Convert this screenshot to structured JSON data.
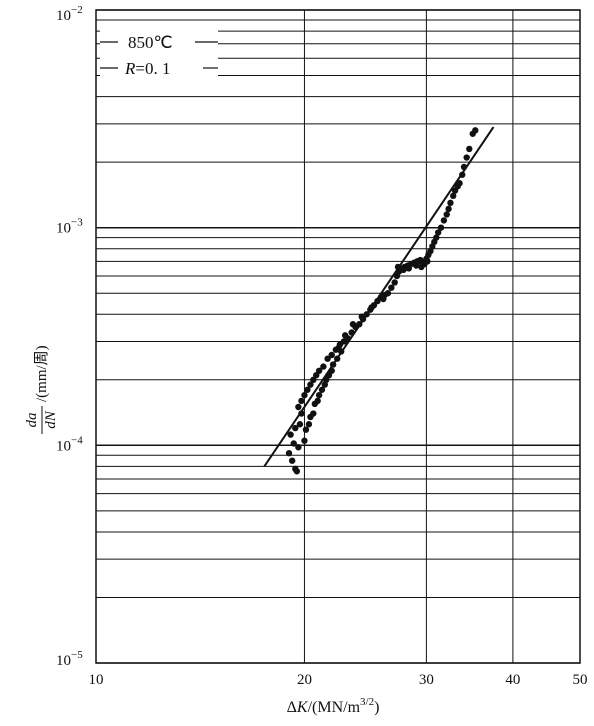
{
  "chart_data": {
    "type": "scatter",
    "title": "",
    "x_scale": "log",
    "y_scale": "log",
    "xlim": [
      10,
      50
    ],
    "ylim": [
      1e-05,
      0.01
    ],
    "x_ticks": [
      {
        "value": 10,
        "label": "10"
      },
      {
        "value": 20,
        "label": "20"
      },
      {
        "value": 30,
        "label": "30"
      },
      {
        "value": 40,
        "label": "40"
      },
      {
        "value": 50,
        "label": "50"
      }
    ],
    "y_ticks": [
      {
        "value": 1e-05,
        "base": "10",
        "exp": "−5"
      },
      {
        "value": 0.0001,
        "base": "10",
        "exp": "−4"
      },
      {
        "value": 0.001,
        "base": "10",
        "exp": "−3"
      },
      {
        "value": 0.01,
        "base": "10",
        "exp": "−2"
      }
    ],
    "xlabel": {
      "delta": "Δ",
      "var": "K",
      "rest": "/(MN/m",
      "sup": "3/2",
      "close": ")"
    },
    "ylabel": {
      "num": "da",
      "den": "dN",
      "unit": "/(mm/周)"
    },
    "annotations": {
      "temperature": "850℃",
      "ratio_var": "R",
      "ratio_val": "=0. 1"
    },
    "grid": true,
    "marker_color": "#111111",
    "fit_line": [
      [
        17.5,
        8e-05
      ],
      [
        37.5,
        0.0029
      ]
    ],
    "points": [
      [
        19.2,
        8.5e-05
      ],
      [
        19.4,
        7.8e-05
      ],
      [
        19.5,
        7.6e-05
      ],
      [
        19.0,
        9.2e-05
      ],
      [
        19.3,
        0.000102
      ],
      [
        19.1,
        0.000112
      ],
      [
        19.6,
        9.8e-05
      ],
      [
        19.4,
        0.00012
      ],
      [
        19.7,
        0.000125
      ],
      [
        19.8,
        0.00014
      ],
      [
        20.0,
        0.000105
      ],
      [
        20.1,
        0.000118
      ],
      [
        20.3,
        0.000125
      ],
      [
        20.4,
        0.000135
      ],
      [
        20.6,
        0.00014
      ],
      [
        20.7,
        0.000155
      ],
      [
        20.9,
        0.00016
      ],
      [
        21.0,
        0.00017
      ],
      [
        21.2,
        0.00018
      ],
      [
        21.4,
        0.00019
      ],
      [
        21.5,
        0.0002
      ],
      [
        21.7,
        0.00021
      ],
      [
        21.9,
        0.00022
      ],
      [
        22.0,
        0.000235
      ],
      [
        22.3,
        0.00025
      ],
      [
        22.6,
        0.00027
      ],
      [
        19.6,
        0.00015
      ],
      [
        19.8,
        0.00016
      ],
      [
        20.0,
        0.00017
      ],
      [
        20.2,
        0.00018
      ],
      [
        20.4,
        0.00019
      ],
      [
        20.6,
        0.0002
      ],
      [
        20.8,
        0.00021
      ],
      [
        21.0,
        0.00022
      ],
      [
        21.3,
        0.00023
      ],
      [
        21.6,
        0.00025
      ],
      [
        21.9,
        0.00026
      ],
      [
        22.2,
        0.000275
      ],
      [
        22.5,
        0.00029
      ],
      [
        22.8,
        0.0003
      ],
      [
        23.1,
        0.00031
      ],
      [
        23.4,
        0.00033
      ],
      [
        23.7,
        0.00035
      ],
      [
        24.0,
        0.00036
      ],
      [
        24.3,
        0.00038
      ],
      [
        24.6,
        0.0004
      ],
      [
        24.9,
        0.00042
      ],
      [
        25.2,
        0.00044
      ],
      [
        25.5,
        0.00046
      ],
      [
        25.8,
        0.00048
      ],
      [
        26.1,
        0.00049
      ],
      [
        26.4,
        0.0005
      ],
      [
        26.7,
        0.00053
      ],
      [
        27.0,
        0.00056
      ],
      [
        27.2,
        0.0006
      ],
      [
        27.4,
        0.00063
      ],
      [
        27.6,
        0.00065
      ],
      [
        27.9,
        0.00066
      ],
      [
        28.2,
        0.00067
      ],
      [
        28.5,
        0.00068
      ],
      [
        28.8,
        0.00069
      ],
      [
        29.1,
        0.0007
      ],
      [
        29.4,
        0.00071
      ],
      [
        29.6,
        0.00069
      ],
      [
        29.8,
        0.00068
      ],
      [
        30.0,
        0.00072
      ],
      [
        30.2,
        0.00075
      ],
      [
        30.4,
        0.00078
      ],
      [
        30.6,
        0.00082
      ],
      [
        30.8,
        0.00086
      ],
      [
        31.0,
        0.0009
      ],
      [
        31.2,
        0.00095
      ],
      [
        31.5,
        0.001
      ],
      [
        31.8,
        0.00108
      ],
      [
        32.1,
        0.00115
      ],
      [
        32.3,
        0.00122
      ],
      [
        32.5,
        0.0013
      ],
      [
        32.8,
        0.0014
      ],
      [
        33.0,
        0.00148
      ],
      [
        33.3,
        0.00155
      ],
      [
        33.5,
        0.0016
      ],
      [
        33.8,
        0.00175
      ],
      [
        34.0,
        0.0019
      ],
      [
        34.3,
        0.0021
      ],
      [
        34.6,
        0.0023
      ],
      [
        35.0,
        0.0027
      ],
      [
        35.3,
        0.0028
      ],
      [
        27.3,
        0.00066
      ],
      [
        27.8,
        0.00064
      ],
      [
        28.3,
        0.00065
      ],
      [
        29.0,
        0.00067
      ],
      [
        29.5,
        0.00066
      ],
      [
        30.1,
        0.0007
      ],
      [
        26.0,
        0.00047
      ],
      [
        25.0,
        0.00043
      ],
      [
        24.2,
        0.00039
      ],
      [
        23.5,
        0.00036
      ],
      [
        22.9,
        0.00032
      ],
      [
        22.4,
        0.00028
      ]
    ]
  }
}
